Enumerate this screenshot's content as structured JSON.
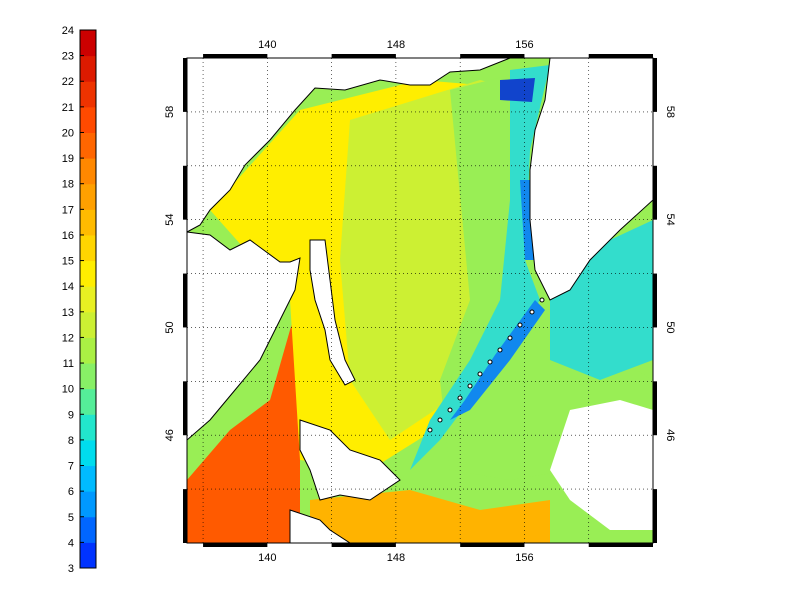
{
  "colorbar": {
    "min": 3,
    "max": 24,
    "tick_labels": [
      "3",
      "4",
      "5",
      "6",
      "7",
      "8",
      "9",
      "10",
      "11",
      "12",
      "13",
      "14",
      "15",
      "16",
      "17",
      "18",
      "19",
      "20",
      "21",
      "22",
      "23",
      "24"
    ],
    "colors": [
      "#0033ff",
      "#0066ff",
      "#0099ff",
      "#00bbff",
      "#00ddee",
      "#22e6cc",
      "#55ee99",
      "#88f066",
      "#aaf044",
      "#ccf033",
      "#e8f022",
      "#ffee00",
      "#ffd500",
      "#ffbb00",
      "#ffa000",
      "#ff8800",
      "#ff6600",
      "#ff4a00",
      "#ee3300",
      "#dd1a00",
      "#cc0000"
    ]
  },
  "map": {
    "lon_range": [
      135,
      164
    ],
    "lat_range": [
      42,
      60
    ],
    "lon_ticks": [
      "140",
      "148",
      "156"
    ],
    "lat_ticks": [
      "46",
      "50",
      "54",
      "58"
    ],
    "colors": {
      "land": "#ffffff",
      "coast": "#000000",
      "warm": "#ff5a00",
      "orange": "#ffb300",
      "yellow": "#ffee00",
      "yellowgreen": "#ccf033",
      "green": "#99ee55",
      "cyan": "#33ddcc",
      "blue": "#1188ee",
      "deepblue": "#1144cc"
    }
  }
}
